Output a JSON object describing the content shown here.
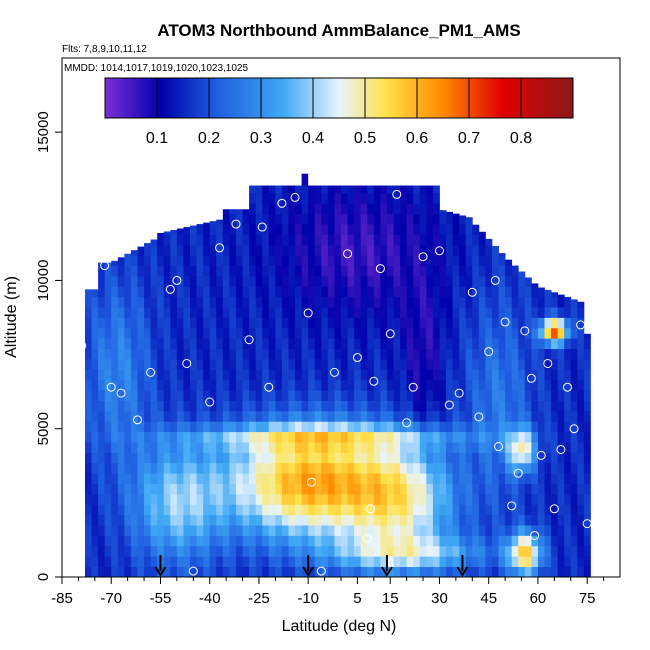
{
  "chart_data": {
    "type": "heatmap",
    "title": "ATOM3 Northbound AmmBalance_PM1_AMS",
    "subtitle_flights": "Flts: 7,8,9,10,11,12",
    "subtitle_dates": "MMDD: 1014,1017,1019,1020,1023,1025",
    "xlabel": "Latitude (deg N)",
    "ylabel": "Altitude (m)",
    "xlim": [
      -85,
      85
    ],
    "ylim": [
      0,
      17500
    ],
    "x_ticks": [
      "-85",
      "-70",
      "-55",
      "-40",
      "-25",
      "-10",
      "5",
      "15",
      "30",
      "45",
      "60",
      "75"
    ],
    "x_tick_values": [
      -85,
      -70,
      -55,
      -40,
      -25,
      -10,
      5,
      15,
      30,
      45,
      60,
      75
    ],
    "y_ticks": [
      "0",
      "5000",
      "10000",
      "15000"
    ],
    "y_tick_values": [
      0,
      5000,
      10000,
      15000
    ],
    "colorbar": {
      "range": [
        0,
        0.9
      ],
      "ticks": [
        "0.1",
        "0.2",
        "0.3",
        "0.4",
        "0.5",
        "0.6",
        "0.7",
        "0.8"
      ],
      "tick_values": [
        0.1,
        0.2,
        0.3,
        0.4,
        0.5,
        0.6,
        0.7,
        0.8
      ],
      "colors": [
        "#7b2fd6",
        "#0000aa",
        "#1f5fe0",
        "#3fa8f5",
        "#e8f4ff",
        "#ffe24a",
        "#ff8c00",
        "#e00000",
        "#8b1a1a"
      ]
    },
    "arrows_latitude": [
      -55,
      -10,
      14,
      37
    ],
    "grid": false,
    "profile_points": [
      {
        "lat": -81,
        "alt": 300
      },
      {
        "lat": -79,
        "alt": 7800
      },
      {
        "lat": -76,
        "alt": 10200
      },
      {
        "lat": -72,
        "alt": 10500
      },
      {
        "lat": -70,
        "alt": 6400
      },
      {
        "lat": -67,
        "alt": 6200
      },
      {
        "lat": -62,
        "alt": 5300
      },
      {
        "lat": -58,
        "alt": 6900
      },
      {
        "lat": -52,
        "alt": 9700
      },
      {
        "lat": -50,
        "alt": 10000
      },
      {
        "lat": -47,
        "alt": 7200
      },
      {
        "lat": -45,
        "alt": 200
      },
      {
        "lat": -40,
        "alt": 5900
      },
      {
        "lat": -37,
        "alt": 11100
      },
      {
        "lat": -32,
        "alt": 11900
      },
      {
        "lat": -28,
        "alt": 8000
      },
      {
        "lat": -24,
        "alt": 11800
      },
      {
        "lat": -22,
        "alt": 6400
      },
      {
        "lat": -18,
        "alt": 12600
      },
      {
        "lat": -14,
        "alt": 12800
      },
      {
        "lat": -10,
        "alt": 8900
      },
      {
        "lat": -9,
        "alt": 3200
      },
      {
        "lat": -6,
        "alt": 200
      },
      {
        "lat": -2,
        "alt": 6900
      },
      {
        "lat": 2,
        "alt": 10900
      },
      {
        "lat": 5,
        "alt": 7400
      },
      {
        "lat": 8,
        "alt": 1300
      },
      {
        "lat": 9,
        "alt": 2300
      },
      {
        "lat": 10,
        "alt": 6600
      },
      {
        "lat": 12,
        "alt": 10400
      },
      {
        "lat": 15,
        "alt": 8200
      },
      {
        "lat": 17,
        "alt": 12900
      },
      {
        "lat": 20,
        "alt": 5200
      },
      {
        "lat": 22,
        "alt": 6400
      },
      {
        "lat": 25,
        "alt": 10800
      },
      {
        "lat": 30,
        "alt": 11000
      },
      {
        "lat": 33,
        "alt": 5800
      },
      {
        "lat": 36,
        "alt": 6200
      },
      {
        "lat": 40,
        "alt": 9600
      },
      {
        "lat": 42,
        "alt": 5400
      },
      {
        "lat": 45,
        "alt": 7600
      },
      {
        "lat": 47,
        "alt": 10000
      },
      {
        "lat": 48,
        "alt": 4400
      },
      {
        "lat": 50,
        "alt": 8600
      },
      {
        "lat": 52,
        "alt": 2400
      },
      {
        "lat": 54,
        "alt": 3500
      },
      {
        "lat": 56,
        "alt": 8300
      },
      {
        "lat": 58,
        "alt": 6700
      },
      {
        "lat": 59,
        "alt": 1400
      },
      {
        "lat": 61,
        "alt": 4100
      },
      {
        "lat": 63,
        "alt": 7200
      },
      {
        "lat": 65,
        "alt": 2300
      },
      {
        "lat": 67,
        "alt": 4300
      },
      {
        "lat": 69,
        "alt": 6400
      },
      {
        "lat": 71,
        "alt": 5000
      },
      {
        "lat": 73,
        "alt": 8500
      },
      {
        "lat": 75,
        "alt": 1800
      },
      {
        "lat": 77,
        "alt": 9000
      },
      {
        "lat": 78,
        "alt": 300
      }
    ]
  }
}
